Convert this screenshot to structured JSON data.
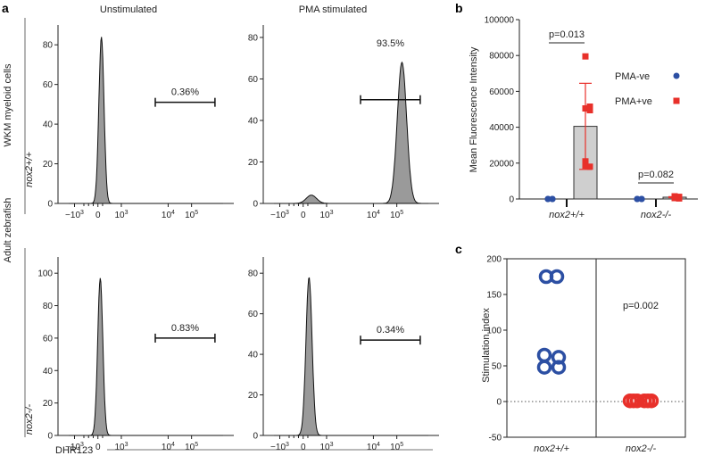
{
  "chart_data": [
    {
      "panel": "a",
      "type": "area",
      "column_titles": [
        "Unstimulated",
        "PMA stimulated"
      ],
      "row_labels": [
        "nox2+/+",
        "nox2-/-"
      ],
      "ylabel_lines": [
        "Adult zebrafish",
        "WKM myeloid cells"
      ],
      "xlabel": "DHR123",
      "x_tick_labels": [
        "-10^3",
        "0",
        "10^3",
        "10^4",
        "10^5"
      ],
      "plots": [
        {
          "row": "nox2+/+",
          "column": "Unstimulated",
          "gate_percent": "0.36%",
          "ylim": [
            0,
            90
          ],
          "y_ticks": [
            0,
            20,
            40,
            60,
            80
          ],
          "peaks": [
            {
              "x": 0.15,
              "height": 84,
              "width": 0.11
            }
          ],
          "gate_range": [
            2.45,
            5.0
          ],
          "gate_level": 51
        },
        {
          "row": "nox2+/+",
          "column": "PMA stimulated",
          "gate_percent": "93.5%",
          "ylim": [
            0,
            86
          ],
          "y_ticks": [
            0,
            20,
            40,
            60,
            80
          ],
          "peaks": [
            {
              "x": 0.35,
              "height": 4,
              "width": 0.22
            },
            {
              "x": 4.22,
              "height": 68,
              "width": 0.2
            }
          ],
          "gate_range": [
            2.45,
            5.0
          ],
          "gate_level": 50
        },
        {
          "row": "nox2-/-",
          "column": "Unstimulated",
          "gate_percent": "0.83%",
          "ylim": [
            0,
            110
          ],
          "y_ticks": [
            0,
            20,
            40,
            60,
            80,
            100
          ],
          "peaks": [
            {
              "x": 0.1,
              "height": 97,
              "width": 0.11
            }
          ],
          "gate_range": [
            2.45,
            5.0
          ],
          "gate_level": 60
        },
        {
          "row": "nox2-/-",
          "column": "PMA stimulated",
          "gate_percent": "0.34%",
          "ylim": [
            0,
            88
          ],
          "y_ticks": [
            0,
            20,
            40,
            60,
            80
          ],
          "peaks": [
            {
              "x": 0.25,
              "height": 78,
              "width": 0.13
            }
          ],
          "gate_range": [
            2.45,
            5.0
          ],
          "gate_level": 47
        }
      ]
    },
    {
      "panel": "b",
      "type": "bar",
      "ylabel": "Mean Fluorescence Intensity",
      "ylim": [
        0,
        100000
      ],
      "y_ticks": [
        "0",
        "20000",
        "40000",
        "60000",
        "80000",
        "100000"
      ],
      "categories": [
        "nox2+/+",
        "nox2-/-"
      ],
      "series": [
        {
          "name": "PMA-ve",
          "color": "#2c4fa3",
          "marker": "circle",
          "mean": [
            0,
            0
          ],
          "points": [
            [
              0,
              0,
              0,
              0,
              0,
              0
            ],
            [
              0,
              0,
              0,
              0,
              0,
              0
            ]
          ]
        },
        {
          "name": "PMA+ve",
          "color": "#e8302a",
          "marker": "square",
          "mean": [
            40500,
            1000
          ],
          "error": [
            24000,
            300
          ],
          "points": [
            [
              79500,
              51500,
              50500,
              49500,
              21000,
              18000,
              18500
            ],
            [
              1500,
              1200,
              900,
              700,
              500,
              300
            ]
          ]
        }
      ],
      "annotations": [
        "p=0.013",
        "p=0.082"
      ],
      "legend_position": "right"
    },
    {
      "panel": "c",
      "type": "scatter",
      "ylabel": "Stimulation index",
      "ylim": [
        -50,
        200
      ],
      "y_ticks": [
        "-50",
        "0",
        "50",
        "100",
        "150",
        "200"
      ],
      "categories": [
        "nox2+/+",
        "nox2-/-"
      ],
      "series": [
        {
          "category": "nox2+/+",
          "color": "#2c4fa3",
          "values": [
            175,
            175,
            65,
            62,
            48,
            48
          ]
        },
        {
          "category": "nox2-/-",
          "color": "#e8302a",
          "values": [
            1,
            1,
            1,
            1,
            1,
            1
          ]
        }
      ],
      "annotations": [
        "p=0.002"
      ]
    }
  ]
}
